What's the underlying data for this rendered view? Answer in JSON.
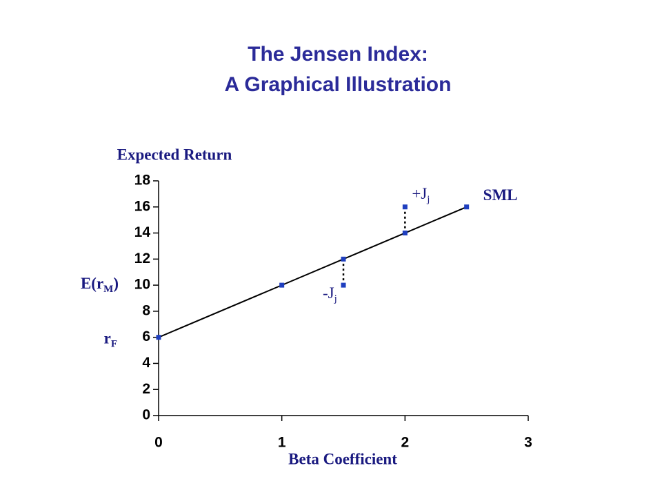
{
  "chart_data": {
    "type": "line",
    "title": "The Jensen Index:",
    "subtitle": "A Graphical Illustration",
    "y_label": "Expected Return",
    "x_label": "Beta Coefficient",
    "xlim": [
      0,
      3
    ],
    "xticks": [
      0,
      1,
      2,
      3
    ],
    "ylim": [
      0,
      18
    ],
    "yticks": [
      0,
      2,
      4,
      6,
      8,
      10,
      12,
      14,
      16,
      18
    ],
    "series": [
      {
        "name": "SML",
        "color": "#000000",
        "marker_color": "#1f3fbf",
        "x": [
          0,
          1,
          1.5,
          2,
          2.5
        ],
        "values": [
          6,
          10,
          12,
          14,
          16
        ]
      },
      {
        "color": "#1f3fbf",
        "x": [
          1.5,
          2
        ],
        "values": [
          10,
          16
        ]
      }
    ],
    "annotations": [
      {
        "text": "+J",
        "sub": "j"
      },
      {
        "text": "-J",
        "sub": "j"
      },
      {
        "text": "E(r",
        "sub": "M",
        "tail": ")"
      },
      {
        "text": "r",
        "sub": "F"
      }
    ]
  }
}
